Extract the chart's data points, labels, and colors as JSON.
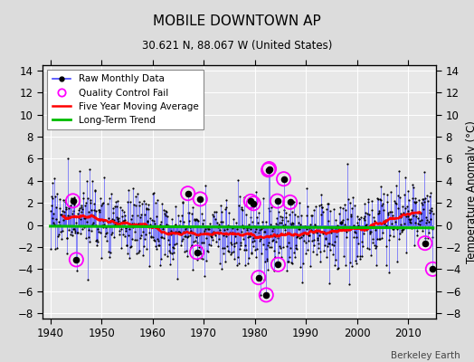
{
  "title": "MOBILE DOWNTOWN AP",
  "subtitle": "30.621 N, 88.067 W (United States)",
  "ylabel_right": "Temperature Anomaly (°C)",
  "credit": "Berkeley Earth",
  "xlim": [
    1938.5,
    2015.5
  ],
  "ylim": [
    -8.5,
    14.5
  ],
  "yticks": [
    -8,
    -6,
    -4,
    -2,
    0,
    2,
    4,
    6,
    8,
    10,
    12,
    14
  ],
  "xticks": [
    1940,
    1950,
    1960,
    1970,
    1980,
    1990,
    2000,
    2010
  ],
  "bg_color": "#dcdcdc",
  "plot_bg_color": "#e8e8e8",
  "raw_line_color": "#4444ff",
  "raw_dot_color": "#000000",
  "qc_fail_color": "#ff00ff",
  "moving_avg_color": "#ff0000",
  "trend_color": "#00bb00",
  "seed": 17
}
